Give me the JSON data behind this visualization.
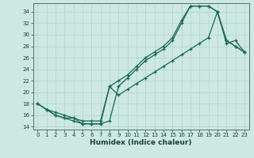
{
  "xlabel": "Humidex (Indice chaleur)",
  "ylabel": "",
  "xlim": [
    -0.5,
    23.5
  ],
  "ylim": [
    13.5,
    35.5
  ],
  "bg_color": "#cce8e0",
  "grid_color": "#b0d8d0",
  "line_color": "#1a6858",
  "line1_x": [
    0,
    1,
    2,
    3,
    4,
    5,
    6,
    7,
    8,
    9,
    10,
    11,
    12,
    13,
    14,
    15,
    16,
    17,
    18,
    19,
    20,
    21,
    22,
    23
  ],
  "line1_y": [
    18,
    17,
    16,
    15.5,
    15,
    14.5,
    14.5,
    14.5,
    15,
    21,
    22.5,
    24,
    25.5,
    26.5,
    27.5,
    29,
    32,
    35,
    35,
    35,
    34,
    29,
    28,
    27
  ],
  "line2_x": [
    0,
    1,
    2,
    3,
    4,
    5,
    6,
    7,
    8,
    9,
    10,
    11,
    12,
    13,
    14,
    15,
    16,
    17,
    18,
    19,
    20,
    21,
    22,
    23
  ],
  "line2_y": [
    18,
    17,
    16.5,
    16,
    15.5,
    15,
    15,
    15,
    21,
    22,
    23,
    24.5,
    26,
    27,
    28,
    29.5,
    32.5,
    35,
    35,
    35,
    34,
    29,
    28,
    27
  ],
  "line3_x": [
    0,
    1,
    2,
    3,
    4,
    5,
    6,
    7,
    8,
    9,
    10,
    11,
    12,
    13,
    14,
    15,
    16,
    17,
    18,
    19,
    20,
    21,
    22,
    23
  ],
  "line3_y": [
    18,
    17,
    16,
    15.5,
    15.5,
    14.5,
    14.5,
    14.5,
    21,
    19.5,
    20.5,
    21.5,
    22.5,
    23.5,
    24.5,
    25.5,
    26.5,
    27.5,
    28.5,
    29.5,
    34,
    28.5,
    29,
    27
  ]
}
